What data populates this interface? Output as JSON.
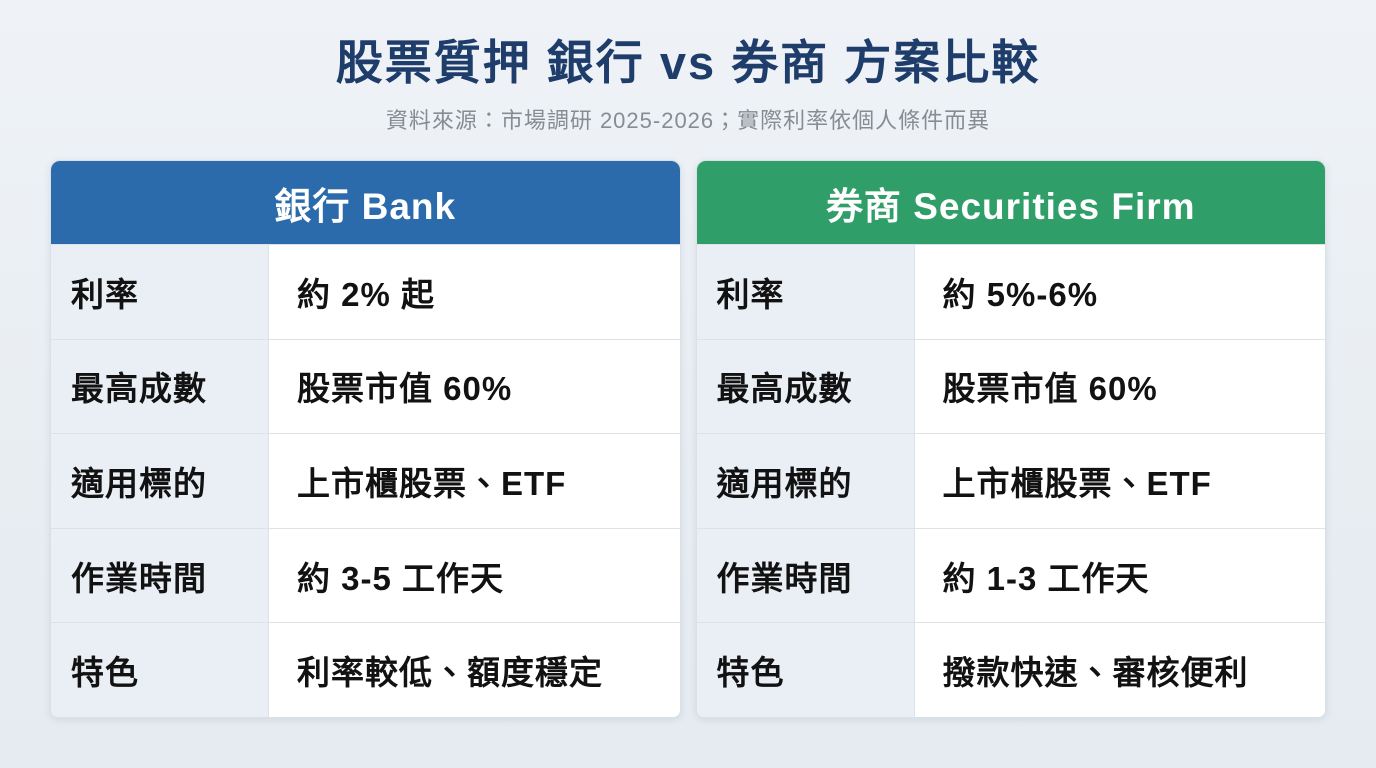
{
  "page": {
    "title": "股票質押 銀行 vs 券商 方案比較",
    "subtitle": "資料來源：市場調研 2025-2026；實際利率依個人條件而異",
    "background_color": "#E9EEF3",
    "title_color": "#1E3D6B",
    "subtitle_color": "#878C92"
  },
  "tables": [
    {
      "id": "bank",
      "header": "銀行 Bank",
      "header_color": "#2B6BAB",
      "rows": [
        {
          "label": "利率",
          "value": "約 2% 起"
        },
        {
          "label": "最高成數",
          "value": "股票市值 60%"
        },
        {
          "label": "適用標的",
          "value": "上市櫃股票、ETF"
        },
        {
          "label": "作業時間",
          "value": "約 3-5 工作天"
        },
        {
          "label": "特色",
          "value": "利率較低、額度穩定"
        }
      ]
    },
    {
      "id": "securities",
      "header": "券商 Securities Firm",
      "header_color": "#2F9E68",
      "rows": [
        {
          "label": "利率",
          "value": "約 5%-6%"
        },
        {
          "label": "最高成數",
          "value": "股票市值 60%"
        },
        {
          "label": "適用標的",
          "value": "上市櫃股票、ETF"
        },
        {
          "label": "作業時間",
          "value": "約 1-3 工作天"
        },
        {
          "label": "特色",
          "value": "撥款快速、審核便利"
        }
      ]
    }
  ],
  "chart_data": {
    "type": "table",
    "title": "股票質押 銀行 vs 券商 方案比較",
    "subtitle": "資料來源：市場調研 2025-2026；實際利率依個人條件而異",
    "row_headers": [
      "利率",
      "最高成數",
      "適用標的",
      "作業時間",
      "特色"
    ],
    "columns": [
      {
        "name": "銀行 Bank",
        "accent_color": "#2B6BAB",
        "values": [
          "約 2% 起",
          "股票市值 60%",
          "上市櫃股票、ETF",
          "約 3-5 工作天",
          "利率較低、額度穩定"
        ]
      },
      {
        "name": "券商 Securities Firm",
        "accent_color": "#2F9E68",
        "values": [
          "約 5%-6%",
          "股票市值 60%",
          "上市櫃股票、ETF",
          "約 1-3 工作天",
          "撥款快速、審核便利"
        ]
      }
    ]
  }
}
